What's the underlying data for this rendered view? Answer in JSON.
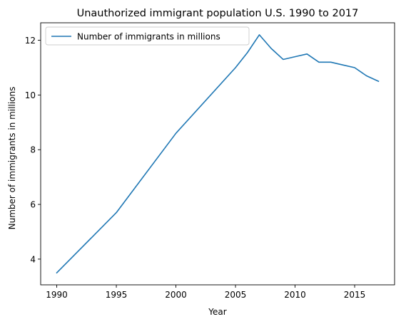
{
  "chart_data": {
    "type": "line",
    "title": "Unauthorized immigrant population U.S. 1990 to 2017",
    "xlabel": "Year",
    "ylabel": "Number of immigrants in millions",
    "xlim": [
      1988.65,
      2018.35
    ],
    "ylim": [
      3.06,
      12.64
    ],
    "xticks": [
      1990,
      1995,
      2000,
      2005,
      2010,
      2015
    ],
    "yticks": [
      4,
      6,
      8,
      10,
      12
    ],
    "grid": false,
    "legend": "top-left",
    "series": [
      {
        "name": "Number of immigrants in millions",
        "color": "#1f77b4",
        "x": [
          1990,
          1995,
          2000,
          2005,
          2006,
          2007,
          2008,
          2009,
          2010,
          2011,
          2012,
          2013,
          2014,
          2015,
          2016,
          2017
        ],
        "y": [
          3.5,
          5.7,
          8.6,
          11.0,
          11.55,
          12.2,
          11.7,
          11.3,
          11.4,
          11.5,
          11.2,
          11.2,
          11.1,
          11.0,
          10.7,
          10.5
        ]
      }
    ]
  }
}
